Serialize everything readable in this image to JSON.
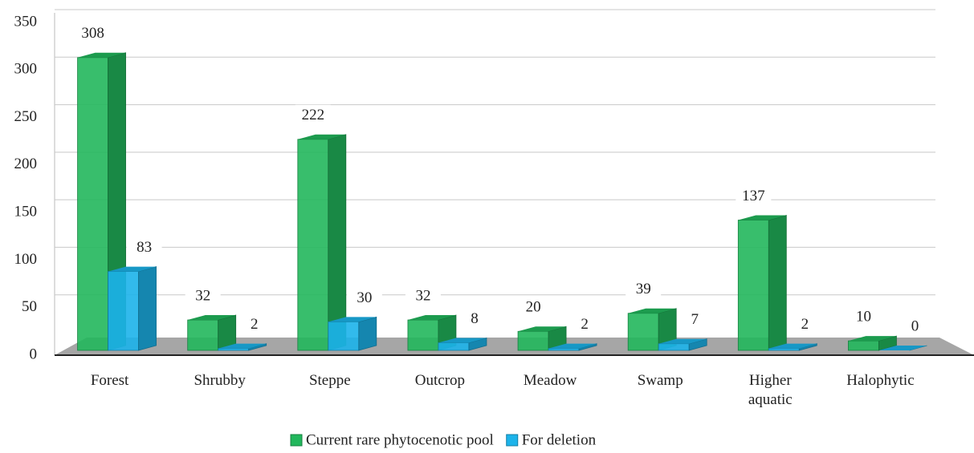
{
  "chart_data": {
    "type": "bar3d",
    "categories": [
      "Forest",
      "Shrubby",
      "Steppe",
      "Outcrop",
      "Meadow",
      "Swamp",
      "Higher aquatic",
      "Halophytic"
    ],
    "series": [
      {
        "name": "Current rare phytocenotic pool",
        "color": "#22b75c",
        "values": [
          308,
          32,
          222,
          32,
          20,
          39,
          137,
          10
        ]
      },
      {
        "name": "For deletion",
        "color": "#1cb3ea",
        "values": [
          83,
          2,
          30,
          8,
          2,
          7,
          2,
          0
        ]
      }
    ],
    "ylim": [
      0,
      350
    ],
    "yticks": [
      0,
      50,
      100,
      150,
      200,
      250,
      300,
      350
    ],
    "grid": true,
    "legend": "bottom"
  }
}
